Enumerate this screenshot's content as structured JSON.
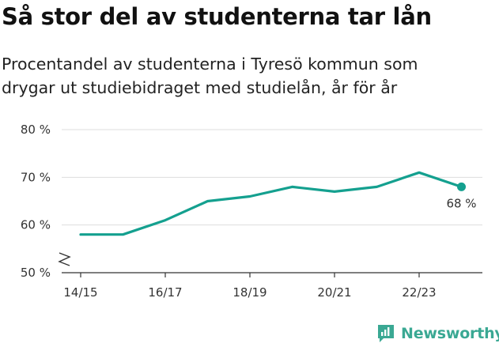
{
  "title": "Så stor del av studenterna tar lån",
  "subtitle": "Procentandel av studenterna i Tyresö kommun som drygar ut studiebidraget med studielån, år för år",
  "brand": {
    "name": "Newsworthy",
    "icon": "newsworthy-logo-icon"
  },
  "colors": {
    "line": "#14a08f",
    "grid": "#dddddd",
    "axis": "#333333",
    "brand": "#3aa893"
  },
  "chart_data": {
    "type": "line",
    "x": [
      "14/15",
      "15/16",
      "16/17",
      "17/18",
      "18/19",
      "19/20",
      "20/21",
      "21/22",
      "22/23",
      "23/24"
    ],
    "series": [
      {
        "values": [
          58,
          58,
          61,
          65,
          66,
          68,
          67,
          68,
          71,
          68
        ]
      }
    ],
    "xticks": [
      "14/15",
      "16/17",
      "18/19",
      "20/21",
      "22/23"
    ],
    "yticks": [
      50,
      60,
      70,
      80
    ],
    "ytick_labels": [
      "50 %",
      "60 %",
      "70 %",
      "80 %"
    ],
    "ylim": [
      50,
      80
    ],
    "axis_break": true,
    "grid": true,
    "end_label": "68 %"
  }
}
